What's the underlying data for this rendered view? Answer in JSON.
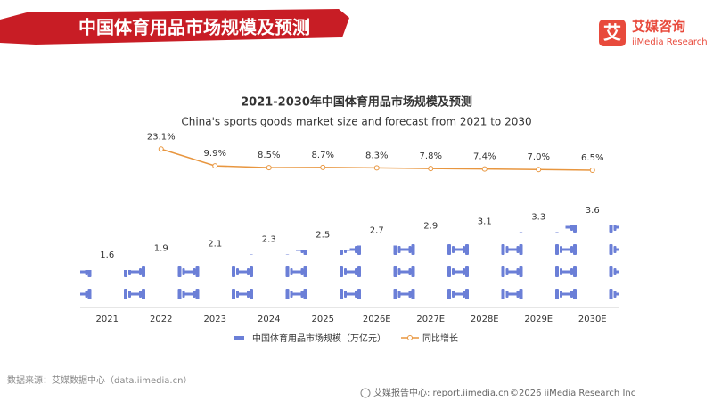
{
  "header": {
    "title": "中国体育用品市场规模及预测",
    "logo_mark": "艾",
    "logo_name": "艾媒咨询",
    "logo_sub": "iiMedia Research"
  },
  "chart_data": {
    "type": "bar",
    "title": "2021-2030年中国体育用品市场规模及预测",
    "subtitle": "China's sports goods market size and forecast from 2021 to 2030",
    "categories": [
      "2021",
      "2022",
      "2023",
      "2024",
      "2025",
      "2026E",
      "2027E",
      "2028E",
      "2029E",
      "2030E"
    ],
    "series": [
      {
        "name": "中国体育用品市场规模（万亿元）",
        "type": "bar",
        "color": "#6b7fd7",
        "values": [
          1.6,
          1.9,
          2.1,
          2.3,
          2.5,
          2.7,
          2.9,
          3.1,
          3.3,
          3.6
        ]
      },
      {
        "name": "同比增长",
        "type": "line",
        "axis": "y2",
        "color": "#e8963f",
        "values": [
          null,
          23.1,
          9.9,
          8.5,
          8.7,
          8.3,
          7.8,
          7.4,
          7.0,
          6.5
        ],
        "value_labels": [
          null,
          "23.1%",
          "9.9%",
          "8.5%",
          "8.7%",
          "8.3%",
          "7.8%",
          "7.4%",
          "7.0%",
          "6.5%"
        ]
      }
    ],
    "ylim": [
      0,
      4
    ],
    "y2lim": [
      -100,
      45
    ]
  },
  "footer": {
    "source": "数据来源：艾媒数据中心（data.iimedia.cn）",
    "report": "艾媒报告中心: report.iimedia.cn",
    "copyright": "©2026  iiMedia Research  Inc"
  }
}
